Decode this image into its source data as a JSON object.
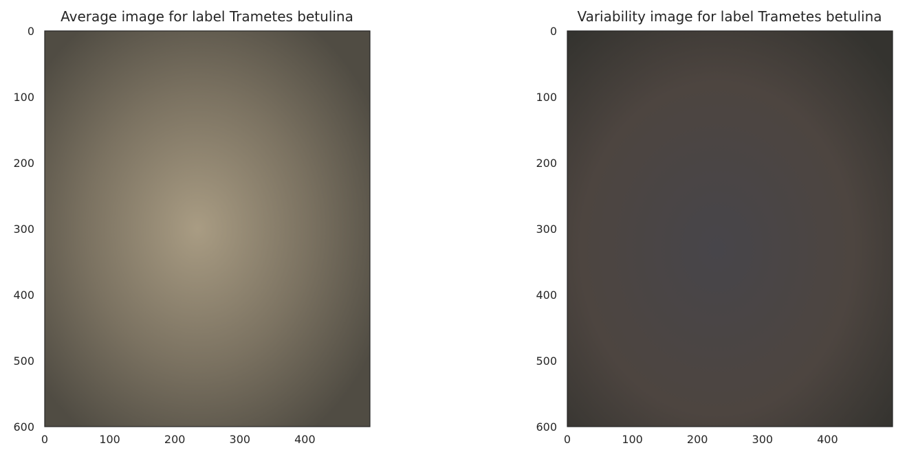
{
  "chart_data": [
    {
      "type": "heatmap",
      "title": "Average image for label Trametes betulina",
      "xlabel": "",
      "ylabel": "",
      "xlim": [
        0,
        500
      ],
      "ylim": [
        600,
        0
      ],
      "xticks": [
        0,
        100,
        200,
        300,
        400
      ],
      "yticks": [
        0,
        100,
        200,
        300,
        400,
        500,
        600
      ],
      "grid": false,
      "legend": "none",
      "colors": {
        "background": "#5f5a4f",
        "center": "#a99c83",
        "edge_dark": "#504c43",
        "tint": "#7b7261"
      }
    },
    {
      "type": "heatmap",
      "title": "Variability image for label Trametes betulina",
      "xlabel": "",
      "ylabel": "",
      "xlim": [
        0,
        500
      ],
      "ylim": [
        600,
        0
      ],
      "xticks": [
        0,
        100,
        200,
        300,
        400
      ],
      "yticks": [
        0,
        100,
        200,
        300,
        400,
        500,
        600
      ],
      "grid": false,
      "legend": "none",
      "colors": {
        "background": "#3e3d39",
        "center": "#47454a",
        "edge_dark": "#34332f",
        "tint": "#4d4540"
      }
    }
  ]
}
